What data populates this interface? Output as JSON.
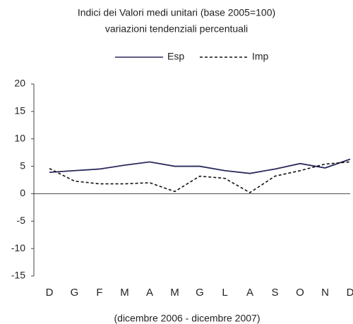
{
  "chart_data": {
    "type": "line",
    "title": "Indici dei Valori medi unitari (base 2005=100)",
    "subtitle": "variazioni tendenziali percentuali",
    "x_label": "(dicembre 2006 - dicembre 2007)",
    "categories": [
      "D",
      "G",
      "F",
      "M",
      "A",
      "M",
      "G",
      "L",
      "A",
      "S",
      "O",
      "N",
      "D"
    ],
    "series": [
      {
        "name": "Esp",
        "color": "#2b2a5c",
        "dashed": false,
        "values": [
          3.9,
          4.2,
          4.5,
          5.2,
          5.8,
          5.0,
          5.0,
          4.2,
          3.7,
          4.5,
          5.5,
          4.7,
          6.3
        ]
      },
      {
        "name": "Imp",
        "color": "#111111",
        "dashed": true,
        "values": [
          4.6,
          2.3,
          1.8,
          1.8,
          2.0,
          0.4,
          3.2,
          2.8,
          0.2,
          3.2,
          4.2,
          5.4,
          5.8
        ]
      }
    ],
    "ylim": [
      -15,
      20
    ],
    "yticks": [
      -15,
      -10,
      -5,
      0,
      5,
      10,
      15,
      20
    ],
    "legend": "top"
  }
}
